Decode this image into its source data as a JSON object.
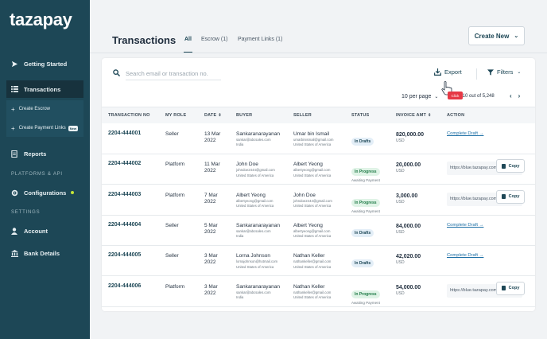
{
  "sidebar": {
    "logo": "tazapay",
    "items": {
      "getting_started": "Getting Started",
      "transactions": "Transactions",
      "create_escrow": "Create Escrow",
      "create_payment_links": "Create Payment Links",
      "new_badge": "New",
      "reports": "Reports",
      "platforms_label": "PLATFORMS & API",
      "configurations": "Configurations",
      "settings_label": "SETTINGS",
      "account": "Account",
      "bank_details": "Bank Details"
    }
  },
  "header": {
    "title": "Transactions",
    "tabs": [
      "All",
      "Escrow (1)",
      "Payment Links (1)"
    ],
    "create_new": "Create New"
  },
  "toolbar": {
    "search_placeholder": "Search email or transaction no.",
    "export": "Export",
    "filters": "Filters",
    "per_page": "10 per page",
    "showing": "…ing 10 out of 5,248",
    "click_tag": "Click"
  },
  "table": {
    "headers": [
      "TRANSACTION NO",
      "MY ROLE",
      "DATE",
      "BUYER",
      "SELLER",
      "STATUS",
      "INVOICE AMT",
      "ACTION"
    ],
    "rows": [
      {
        "txn": "2204-444001",
        "role": "Seller",
        "date1": "13 Mar",
        "date2": "2022",
        "buyer_name": "Sankaranarayanan",
        "buyer_email": "sankar@abcsales.com",
        "buyer_country": "India",
        "seller_name": "Umar bin Ismail",
        "seller_email": "umarbinismail@gmail.com",
        "seller_country": "United States of America",
        "status": "In Drafts",
        "status_sub": "",
        "amount": "820,000.00",
        "currency": "USD",
        "action_link": "Complete Draft",
        "action_url": "",
        "copy": ""
      },
      {
        "txn": "2204-444002",
        "role": "Platform",
        "date1": "11 Mar",
        "date2": "2022",
        "buyer_name": "John Doe",
        "buyer_email": "johndoe2444@gmail.com",
        "buyer_country": "United States of America",
        "seller_name": "Albert Yeong",
        "seller_email": "albertyeong@gmail.com",
        "seller_country": "United States of America",
        "status": "In Progress",
        "status_sub": "Awaiting Payment",
        "amount": "20,000.00",
        "currency": "USD",
        "action_link": "",
        "action_url": "https://blue.tazapay.com",
        "copy": "Copy"
      },
      {
        "txn": "2204-444003",
        "role": "Platform",
        "date1": "7 Mar",
        "date2": "2022",
        "buyer_name": "Albert Yeong",
        "buyer_email": "albertyeong@gmail.com",
        "buyer_country": "United States of America",
        "seller_name": "John Doe",
        "seller_email": "johndoe2444@gmail.com",
        "seller_country": "United States of America",
        "status": "In Progress",
        "status_sub": "Awaiting Payment",
        "amount": "3,000.00",
        "currency": "USD",
        "action_link": "",
        "action_url": "https://blue.tazapay.com",
        "copy": "Copy"
      },
      {
        "txn": "2204-444004",
        "role": "Seller",
        "date1": "5 Mar",
        "date2": "2022",
        "buyer_name": "Sankaranarayanan",
        "buyer_email": "sankar@abcsales.com",
        "buyer_country": "India",
        "seller_name": "Albert Yeong",
        "seller_email": "albertyeong@gmail.com",
        "seller_country": "United States of America",
        "status": "In Drafts",
        "status_sub": "",
        "amount": "84,000.00",
        "currency": "USD",
        "action_link": "Complete Draft",
        "action_url": "",
        "copy": ""
      },
      {
        "txn": "2204-444005",
        "role": "Seller",
        "date1": "3 Mar",
        "date2": "2022",
        "buyer_name": "Lorna Johnson",
        "buyer_email": "lornajohnson@hotmail.com",
        "buyer_country": "United States of America",
        "seller_name": "Nathan Keller",
        "seller_email": "nathankeller@gmail.com",
        "seller_country": "United States of America",
        "status": "In Drafts",
        "status_sub": "",
        "amount": "42,020.00",
        "currency": "USD",
        "action_link": "Complete Draft",
        "action_url": "",
        "copy": ""
      },
      {
        "txn": "2204-444006",
        "role": "Platform",
        "date1": "3 Mar",
        "date2": "2022",
        "buyer_name": "Sankaranarayanan",
        "buyer_email": "sankar@abcsales.com",
        "buyer_country": "India",
        "seller_name": "Nathan Keller",
        "seller_email": "nathankeller@gmail.com",
        "seller_country": "United States of America",
        "status": "In Progress",
        "status_sub": "Awaiting Payment",
        "amount": "54,000.00",
        "currency": "USD",
        "action_link": "",
        "action_url": "https://blue.tazapay.com",
        "copy": "Copy"
      }
    ]
  },
  "colors": {
    "sidebar": "#1d4756",
    "accent": "#1d4756",
    "draft_badge": "#e3eef7",
    "progress_badge": "#dff3e6",
    "click_tag": "#e63946"
  }
}
